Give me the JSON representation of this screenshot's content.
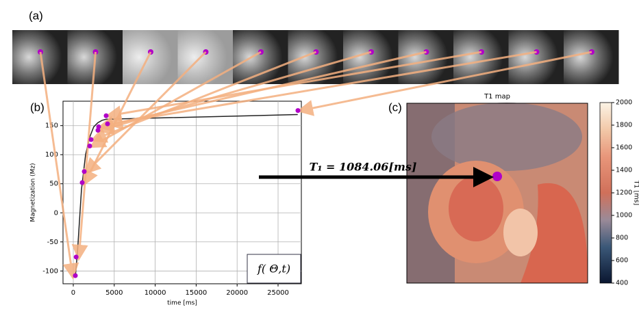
{
  "panels": {
    "a": "(a)",
    "b": "(b)",
    "c": "(c)"
  },
  "map_title": "T1 map",
  "annotation": "T₁ = 1084.06[ms]",
  "model_label": "f( Θ,t)",
  "chart_data": [
    {
      "type": "scatter",
      "x_label": "time [ms]",
      "y_label": "Magnetization (Mz)",
      "xlim": [
        -1254,
        27842
      ],
      "ylim": [
        -122,
        192
      ],
      "xticks": [
        0,
        5000,
        10000,
        15000,
        20000,
        25000
      ],
      "yticks": [
        -100,
        -50,
        0,
        50,
        100,
        150
      ],
      "grid": true,
      "series": [
        {
          "type": "line",
          "color": "#222222",
          "x": [
            250,
            500,
            1000,
            1500,
            2000,
            2500,
            3000,
            3500,
            4000,
            27400
          ],
          "values": [
            -110,
            -70,
            40,
            100,
            130,
            148,
            155,
            159,
            161,
            169
          ]
        },
        {
          "type": "scatter",
          "color": "#b000c8",
          "x": [
            250,
            350,
            1087,
            1338,
            2007,
            2174,
            3010,
            3094,
            4013,
            4180,
            27425
          ],
          "values": [
            -108,
            -76,
            52,
            71,
            115,
            126,
            142,
            148,
            167,
            153,
            176
          ]
        }
      ]
    },
    {
      "type": "colorbar",
      "y_label": "T1 [ms]",
      "ylim": [
        400,
        2000
      ],
      "yticks": [
        400,
        600,
        800,
        1000,
        1200,
        1400,
        1600,
        1800,
        2000
      ]
    }
  ]
}
